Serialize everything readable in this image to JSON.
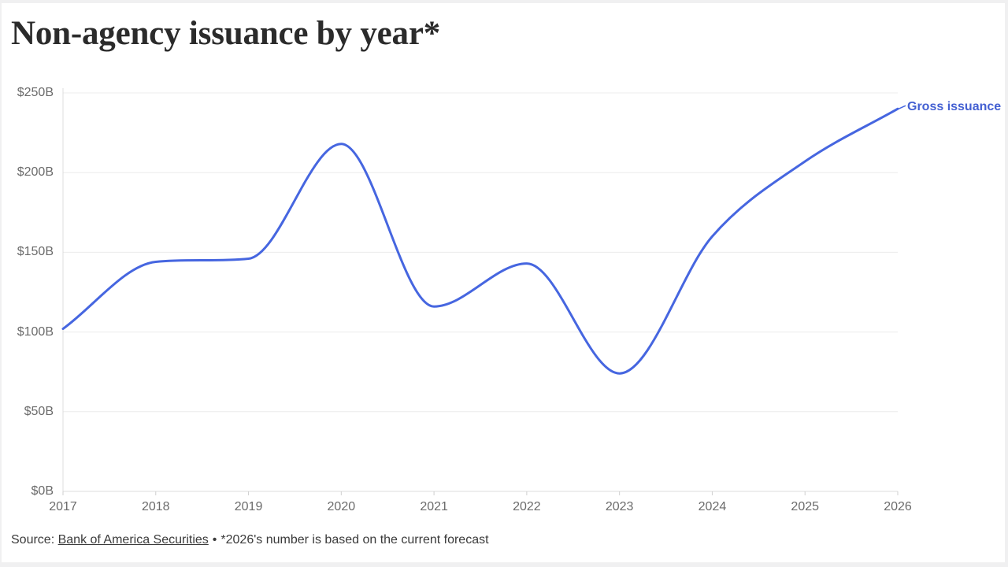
{
  "header": {
    "title": "Non-agency issuance by year*"
  },
  "chart_data": {
    "type": "line",
    "title": "Non-agency issuance by year*",
    "curve": "monotone",
    "x": [
      2017,
      2018,
      2019,
      2020,
      2021,
      2022,
      2023,
      2024,
      2025,
      2026
    ],
    "x_tick_labels": [
      "2017",
      "2018",
      "2019",
      "2020",
      "2021",
      "2022",
      "2023",
      "2024",
      "2025",
      "2026"
    ],
    "series": [
      {
        "name": "Gross issuance",
        "color": "#4666e0",
        "values": [
          102,
          144,
          146,
          218,
          116,
          143,
          74,
          160,
          207,
          240
        ]
      }
    ],
    "xlabel": "",
    "ylabel": "",
    "ylim": [
      0,
      250
    ],
    "y_ticks": [
      0,
      50,
      100,
      150,
      200,
      250
    ],
    "y_tick_labels": [
      "$0B",
      "$50B",
      "$100B",
      "$150B",
      "$200B",
      "$250B"
    ],
    "grid": "horizontal",
    "legend_position": "line-end-label"
  },
  "footer": {
    "source_prefix": "Source:",
    "source_link_text": "Bank of America Securities",
    "bullet": "•",
    "note": "*2026's number is based on the current forecast"
  },
  "colors": {
    "accent": "#4666e0",
    "series_label_text": "#4460d2",
    "title_text": "#2b2b2b",
    "axis_text": "#6b6b6b",
    "gridline": "#ececec",
    "baseline": "#dcdcdc",
    "tick": "#cfcfcf",
    "page_edge": "#f0f0f1"
  }
}
